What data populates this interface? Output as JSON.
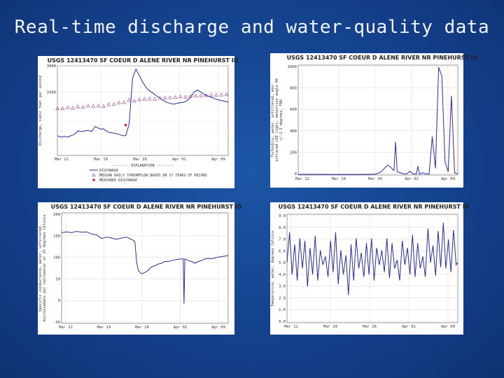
{
  "slide": {
    "title": "Real-time discharge and water-quality data"
  },
  "colors": {
    "series": "#2b2d9a",
    "median": "#a04088",
    "background": "#154592",
    "grid": "#d7d7d7"
  },
  "chart_data": [
    {
      "type": "line",
      "title": "USGS 12413470 SF COEUR D ALENE RIVER NR PINEHURST ID",
      "ylabel": "Discharge, cubic feet per second",
      "ylabel_lines": [
        "Discharge, cubic feet per second"
      ],
      "y_scale": "log",
      "ylim": [
        70,
        3000
      ],
      "yticks": [
        "3000",
        "1000"
      ],
      "xticks": [
        "Mar 12",
        "Mar 19",
        "Mar 26",
        "Apr 02",
        "Apr 09"
      ],
      "legend": {
        "heading": "EXPLANATION",
        "entries": [
          {
            "label": "DISCHARGE",
            "marker": "line"
          },
          {
            "label": "MEDIAN DAILY STREAMFLOW BASED ON 17 YEARS OF RECORD",
            "marker": "triangle"
          },
          {
            "label": "MEASURED DISCHARGE",
            "marker": "star"
          }
        ]
      },
      "series": [
        {
          "name": "DISCHARGE",
          "x": [
            0,
            2,
            4,
            6,
            8,
            10,
            12,
            14,
            16,
            18,
            20,
            22,
            24,
            26,
            27,
            28,
            30,
            32,
            34,
            36,
            38,
            40,
            42,
            44,
            46,
            48,
            50,
            52,
            54,
            56,
            58,
            60,
            62,
            64,
            66,
            68,
            70,
            72,
            74,
            76,
            78,
            80,
            82,
            84,
            86,
            88,
            90,
            92,
            94,
            96,
            98,
            100
          ],
          "values": [
            160,
            150,
            155,
            150,
            160,
            170,
            195,
            190,
            195,
            200,
            190,
            235,
            220,
            210,
            215,
            200,
            185,
            180,
            175,
            170,
            160,
            160,
            260,
            1800,
            2600,
            2000,
            1500,
            1200,
            1050,
            950,
            850,
            780,
            700,
            650,
            620,
            600,
            620,
            640,
            650,
            700,
            800,
            1000,
            1080,
            1000,
            900,
            850,
            800,
            760,
            720,
            700,
            680,
            650
          ]
        },
        {
          "name": "MEDIAN DAILY STREAMFLOW BASED ON 17 YEARS OF RECORD",
          "x": [
            0,
            3,
            6,
            9,
            12,
            15,
            18,
            21,
            24,
            27,
            30,
            33,
            36,
            39,
            42,
            45,
            48,
            51,
            54,
            57,
            60,
            63,
            66,
            69,
            72,
            75,
            78,
            81,
            84,
            87,
            90,
            93,
            96,
            99
          ],
          "values": [
            500,
            500,
            520,
            510,
            540,
            530,
            560,
            550,
            560,
            550,
            590,
            600,
            640,
            650,
            720,
            690,
            730,
            740,
            750,
            740,
            770,
            780,
            790,
            800,
            820,
            810,
            840,
            850,
            860,
            870,
            870,
            880,
            890,
            900
          ]
        },
        {
          "name": "MEASURED DISCHARGE",
          "x": [
            40
          ],
          "values": [
            250
          ]
        }
      ]
    },
    {
      "type": "line",
      "title": "USGS 12413470 SF COEUR D ALENE RIVER NR PINEHURST ID",
      "ylabel_lines": [
        "Turbidity, water, unfiltered, mon-",
        "infrared LED light, detection angle 90",
        "+/-2.5 degrees, FNU"
      ],
      "ylim": [
        0,
        1000
      ],
      "yticks": [
        "1000",
        "800",
        "600",
        "400",
        "200",
        "0"
      ],
      "xticks": [
        "Mar 12",
        "Mar 19",
        "Mar 26",
        "Apr 02",
        "Apr 09"
      ],
      "series": [
        {
          "name": "",
          "x": [
            0,
            10,
            20,
            30,
            38,
            40,
            46,
            48,
            50,
            52,
            54,
            56,
            58,
            60,
            61,
            62,
            64,
            66,
            68,
            70,
            72,
            74,
            75,
            76,
            78,
            80,
            82,
            84,
            86,
            88,
            90,
            92,
            94,
            96,
            98,
            100
          ],
          "values": [
            6,
            6,
            5,
            5,
            5,
            6,
            6,
            8,
            15,
            30,
            60,
            90,
            70,
            40,
            300,
            30,
            20,
            12,
            10,
            35,
            10,
            8,
            80,
            8,
            20,
            10,
            8,
            350,
            60,
            980,
            900,
            120,
            30,
            720,
            20,
            10
          ]
        }
      ]
    },
    {
      "type": "line",
      "title": "USGS 12413470 SF COEUR D ALENE RIVER NR PINEHURST ID",
      "ylabel_lines": [
        "Specific conductance, water, unfiltered,",
        "microsiemens per centimeter at 25 degrees Celsius"
      ],
      "ylim": [
        -50,
        200
      ],
      "yticks": [
        "200",
        "150",
        "100",
        "50",
        "0",
        "-50"
      ],
      "xticks": [
        "Mar 12",
        "Mar 19",
        "Mar 26",
        "Apr 02",
        "Apr 09"
      ],
      "series": [
        {
          "name": "",
          "x": [
            0,
            3,
            6,
            9,
            12,
            15,
            18,
            21,
            24,
            27,
            30,
            33,
            36,
            39,
            42,
            44,
            45,
            46,
            48,
            50,
            52,
            54,
            56,
            58,
            60,
            62,
            64,
            66,
            68,
            70,
            72,
            73,
            73.5,
            74,
            76,
            78,
            80,
            82,
            84,
            86,
            88,
            90,
            92,
            94,
            96,
            98,
            100
          ],
          "values": [
            155,
            157,
            155,
            158,
            156,
            157,
            152,
            150,
            142,
            145,
            143,
            140,
            143,
            145,
            140,
            135,
            90,
            70,
            62,
            65,
            70,
            78,
            80,
            84,
            86,
            90,
            90,
            92,
            94,
            95,
            96,
            96,
            -5,
            96,
            92,
            90,
            86,
            90,
            92,
            96,
            97,
            96,
            98,
            100,
            101,
            102,
            103
          ]
        }
      ]
    },
    {
      "type": "line",
      "title": "USGS 12413470 SF COEUR D ALENE RIVER NR PINEHURST ID",
      "ylabel_lines": [
        "Temperature, water, degrees Celsius"
      ],
      "ylim": [
        0,
        9
      ],
      "yticks": [
        "9.0",
        "8.0",
        "7.0",
        "6.0",
        "5.0",
        "4.0",
        "3.0",
        "2.0",
        "1.0",
        "0.0"
      ],
      "xticks": [
        "Mar 12",
        "Mar 19",
        "Mar 26",
        "Apr 02",
        "Apr 09"
      ],
      "series": [
        {
          "name": "",
          "x": [
            0,
            1.5,
            3,
            4.5,
            6,
            7.5,
            9,
            10.5,
            12,
            13.5,
            15,
            16.5,
            18,
            19.5,
            21,
            22.5,
            24,
            25.5,
            27,
            28.5,
            30,
            31.5,
            33,
            34.5,
            36,
            37.5,
            39,
            40.5,
            42,
            43.5,
            45,
            46.5,
            48,
            49.5,
            51,
            52.5,
            54,
            55.5,
            57,
            58.5,
            60,
            61.5,
            63,
            64.5,
            66,
            67.5,
            69,
            70.5,
            72,
            73.5,
            75,
            76.5,
            78,
            79.5,
            81,
            82.5,
            84,
            85.5,
            87,
            88.5,
            90,
            91.5,
            93,
            94.5,
            96,
            97.5,
            99,
            100
          ],
          "values": [
            5,
            7.5,
            4,
            6.5,
            3.5,
            7,
            4.5,
            6.8,
            3,
            6.2,
            4,
            7.2,
            3.5,
            6,
            4.8,
            5.5,
            3.8,
            6.8,
            4.2,
            7.5,
            3.2,
            6,
            4,
            5.6,
            2.3,
            6.5,
            3.5,
            7,
            4.5,
            5.8,
            3.8,
            6.6,
            4,
            7,
            3.5,
            6.2,
            4.8,
            6,
            4.2,
            7,
            3.7,
            6.6,
            4.5,
            5.2,
            3.5,
            6.8,
            4.8,
            6.2,
            4,
            7.3,
            3.8,
            6.6,
            4.5,
            5.5,
            3.8,
            7.8,
            5,
            6.4,
            3.9,
            7.6,
            4.6,
            8.3,
            4.5,
            6.9,
            4.2,
            7.7,
            4.8,
            5
          ]
        }
      ]
    }
  ]
}
